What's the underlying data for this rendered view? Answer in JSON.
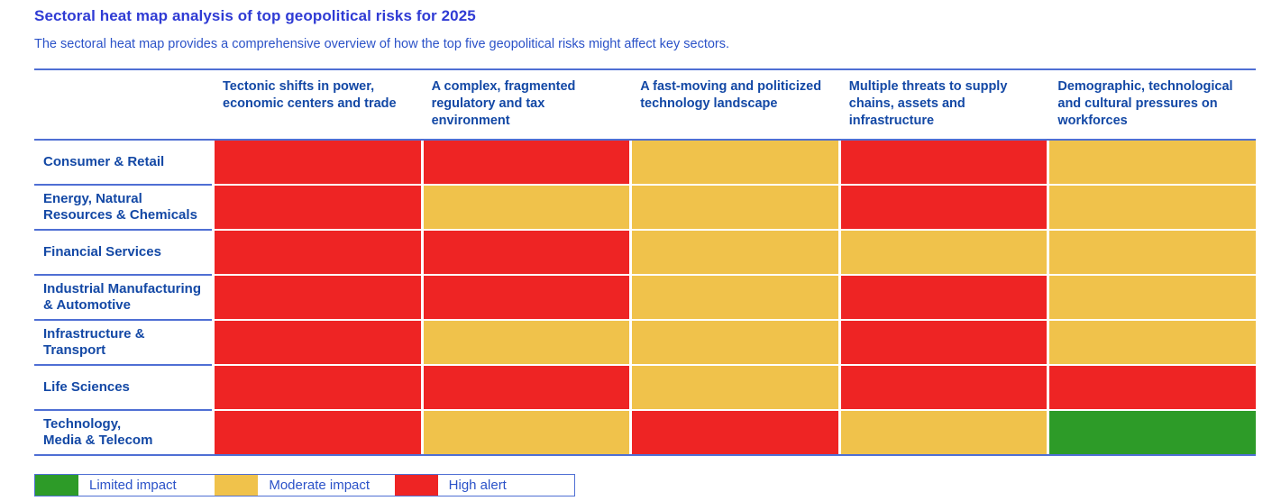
{
  "page": {
    "title": "Sectoral heat map analysis of top geopolitical risks for 2025",
    "subtitle": "The sectoral heat map provides a comprehensive overview of how the top five geopolitical risks might affect key sectors."
  },
  "colors": {
    "title_text": "#2F3BD4",
    "body_text": "#2B52C8",
    "table_text": "#1348A5",
    "line": "#4F6FD4",
    "high_alert": "#EE2424",
    "moderate_impact": "#F0C24B",
    "limited_impact": "#2D9B28"
  },
  "chart_data": {
    "type": "heatmap",
    "title": "Sectoral heat map analysis of top geopolitical risks for 2025",
    "subtitle": "The sectoral heat map provides a comprehensive overview of how the top five geopolitical risks might affect key sectors.",
    "columns": [
      "Tectonic shifts in power, economic centers and trade",
      "A complex, fragmented regulatory and tax environment",
      "A fast-moving and politicized technology landscape",
      "Multiple threats to supply chains, assets and infrastructure",
      "Demographic, technological and cultural pressures on workforces"
    ],
    "rows": [
      "Consumer & Retail",
      "Energy, Natural\nResources & Chemicals",
      "Financial Services",
      "Industrial Manufacturing\n& Automotive",
      "Infrastructure &\nTransport",
      "Life Sciences",
      "Technology,\nMedia & Telecom"
    ],
    "values": [
      [
        "high",
        "high",
        "moderate",
        "high",
        "moderate"
      ],
      [
        "high",
        "moderate",
        "moderate",
        "high",
        "moderate"
      ],
      [
        "high",
        "high",
        "moderate",
        "moderate",
        "moderate"
      ],
      [
        "high",
        "high",
        "moderate",
        "high",
        "moderate"
      ],
      [
        "high",
        "moderate",
        "moderate",
        "high",
        "moderate"
      ],
      [
        "high",
        "high",
        "moderate",
        "high",
        "high"
      ],
      [
        "high",
        "moderate",
        "high",
        "moderate",
        "limited"
      ]
    ],
    "value_scale": [
      "limited",
      "moderate",
      "high"
    ],
    "legend": [
      {
        "level": "limited",
        "label": "Limited impact",
        "color": "#2D9B28"
      },
      {
        "level": "moderate",
        "label": "Moderate impact",
        "color": "#F0C24B"
      },
      {
        "level": "high",
        "label": "High alert",
        "color": "#EE2424"
      }
    ],
    "legend_position": "bottom-left",
    "grid": "white gaps between cells, blue rules above header, below header and below last row"
  }
}
